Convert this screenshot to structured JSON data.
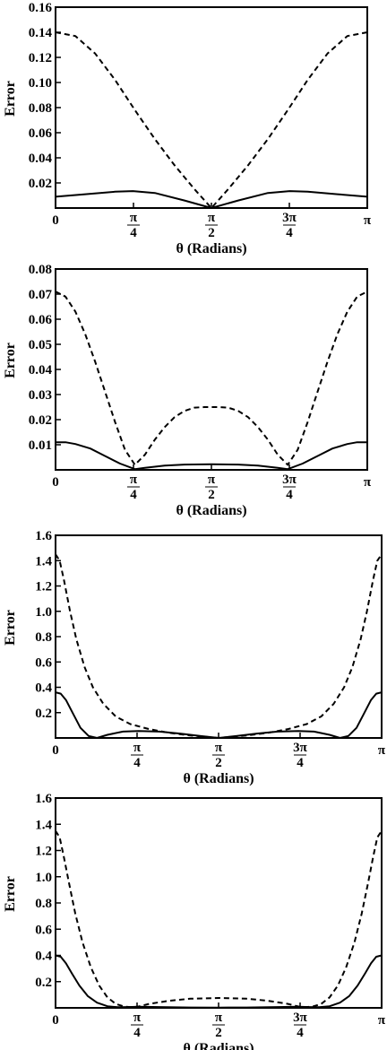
{
  "chart_data": [
    {
      "type": "line",
      "xlabel": "θ (Radians)",
      "ylabel": "Error",
      "xlim": [
        0,
        3.14159
      ],
      "ylim": [
        0,
        0.16
      ],
      "x_ticks": [
        {
          "value": 0,
          "label": "0"
        },
        {
          "value": 0.7854,
          "label": "π/4"
        },
        {
          "value": 1.5708,
          "label": "π/2"
        },
        {
          "value": 2.3562,
          "label": "3π/4"
        },
        {
          "value": 3.14159,
          "label": "π"
        }
      ],
      "y_ticks": [
        {
          "value": 0.02,
          "label": "0.02"
        },
        {
          "value": 0.04,
          "label": "0.04"
        },
        {
          "value": 0.06,
          "label": "0.06"
        },
        {
          "value": 0.08,
          "label": "0.08"
        },
        {
          "value": 0.1,
          "label": "0.10"
        },
        {
          "value": 0.12,
          "label": "0.12"
        },
        {
          "value": 0.14,
          "label": "0.14"
        },
        {
          "value": 0.16,
          "label": "0.16"
        }
      ],
      "series": [
        {
          "style": "dashed",
          "x": [
            0,
            0.2,
            0.4,
            0.6,
            0.8,
            1.0,
            1.2,
            1.4,
            1.5708,
            1.74,
            1.94,
            2.14,
            2.34,
            2.54,
            2.74,
            2.94,
            3.14159
          ],
          "values": [
            0.14,
            0.137,
            0.123,
            0.102,
            0.078,
            0.055,
            0.034,
            0.015,
            0.0,
            0.015,
            0.034,
            0.055,
            0.078,
            0.102,
            0.123,
            0.137,
            0.14
          ]
        },
        {
          "style": "solid",
          "x": [
            0,
            0.3,
            0.6,
            0.78,
            1.0,
            1.3,
            1.5708,
            1.84,
            2.14,
            2.36,
            2.54,
            2.84,
            3.14159
          ],
          "values": [
            0.009,
            0.011,
            0.013,
            0.0135,
            0.012,
            0.006,
            0.0,
            0.006,
            0.012,
            0.0135,
            0.013,
            0.011,
            0.009
          ]
        }
      ]
    },
    {
      "type": "line",
      "xlabel": "θ (Radians)",
      "ylabel": "Error",
      "xlim": [
        0,
        3.14159
      ],
      "ylim": [
        0,
        0.08
      ],
      "x_ticks": [
        {
          "value": 0,
          "label": "0"
        },
        {
          "value": 0.7854,
          "label": "π/4"
        },
        {
          "value": 1.5708,
          "label": "π/2"
        },
        {
          "value": 2.3562,
          "label": "3π/4"
        },
        {
          "value": 3.14159,
          "label": "π"
        }
      ],
      "y_ticks": [
        {
          "value": 0.01,
          "label": "0.01"
        },
        {
          "value": 0.02,
          "label": "0.02"
        },
        {
          "value": 0.03,
          "label": "0.03"
        },
        {
          "value": 0.04,
          "label": "0.04"
        },
        {
          "value": 0.05,
          "label": "0.05"
        },
        {
          "value": 0.06,
          "label": "0.06"
        },
        {
          "value": 0.07,
          "label": "0.07"
        },
        {
          "value": 0.08,
          "label": "0.08"
        }
      ],
      "series": [
        {
          "style": "dashed",
          "x": [
            0,
            0.1,
            0.2,
            0.3,
            0.4,
            0.5,
            0.6,
            0.7,
            0.8,
            0.9,
            1.0,
            1.1,
            1.2,
            1.3,
            1.4,
            1.5,
            1.5708,
            1.64,
            1.74,
            1.84,
            1.94,
            2.04,
            2.14,
            2.24,
            2.34,
            2.44,
            2.54,
            2.64,
            2.74,
            2.84,
            2.94,
            3.04,
            3.14159
          ],
          "values": [
            0.071,
            0.069,
            0.063,
            0.054,
            0.043,
            0.031,
            0.019,
            0.008,
            0.002,
            0.006,
            0.012,
            0.017,
            0.021,
            0.0235,
            0.0248,
            0.025,
            0.025,
            0.025,
            0.0248,
            0.0235,
            0.021,
            0.017,
            0.012,
            0.006,
            0.002,
            0.008,
            0.019,
            0.031,
            0.043,
            0.054,
            0.063,
            0.069,
            0.071
          ]
        },
        {
          "style": "solid",
          "x": [
            0,
            0.1,
            0.2,
            0.35,
            0.5,
            0.65,
            0.8,
            0.9,
            1.1,
            1.3,
            1.5708,
            1.84,
            2.04,
            2.24,
            2.34,
            2.49,
            2.64,
            2.79,
            2.94,
            3.04,
            3.14159
          ],
          "values": [
            0.011,
            0.011,
            0.0103,
            0.0085,
            0.0055,
            0.0025,
            0.0003,
            0.0008,
            0.0017,
            0.0021,
            0.0022,
            0.0021,
            0.0017,
            0.0008,
            0.0003,
            0.0025,
            0.0055,
            0.0085,
            0.0103,
            0.011,
            0.011
          ]
        }
      ]
    },
    {
      "type": "line",
      "xlabel": "θ (Radians)",
      "ylabel": "Error",
      "xlim": [
        0,
        3.14159
      ],
      "ylim": [
        0,
        1.6
      ],
      "x_ticks": [
        {
          "value": 0,
          "label": "0"
        },
        {
          "value": 0.7854,
          "label": "π/4"
        },
        {
          "value": 1.5708,
          "label": "π/2"
        },
        {
          "value": 2.3562,
          "label": "3π/4"
        },
        {
          "value": 3.14159,
          "label": "π"
        }
      ],
      "y_ticks": [
        {
          "value": 0.2,
          "label": "0.2"
        },
        {
          "value": 0.4,
          "label": "0.4"
        },
        {
          "value": 0.6,
          "label": "0.6"
        },
        {
          "value": 0.8,
          "label": "0.8"
        },
        {
          "value": 1.0,
          "label": "1.0"
        },
        {
          "value": 1.2,
          "label": "1.2"
        },
        {
          "value": 1.4,
          "label": "1.4"
        },
        {
          "value": 1.6,
          "label": "1.6"
        }
      ],
      "series": [
        {
          "style": "dashed",
          "x": [
            0,
            0.04,
            0.08,
            0.14,
            0.2,
            0.28,
            0.36,
            0.46,
            0.58,
            0.72,
            0.9,
            1.1,
            1.3,
            1.5708,
            1.84,
            2.04,
            2.24,
            2.42,
            2.56,
            2.68,
            2.78,
            2.86,
            2.94,
            3.0,
            3.06,
            3.1,
            3.14159
          ],
          "values": [
            1.45,
            1.4,
            1.25,
            1.0,
            0.78,
            0.56,
            0.4,
            0.27,
            0.17,
            0.11,
            0.07,
            0.04,
            0.02,
            0.0,
            0.02,
            0.04,
            0.07,
            0.11,
            0.17,
            0.27,
            0.4,
            0.56,
            0.78,
            1.0,
            1.25,
            1.4,
            1.45
          ]
        },
        {
          "style": "solid",
          "x": [
            0,
            0.05,
            0.1,
            0.17,
            0.24,
            0.32,
            0.4,
            0.5,
            0.65,
            0.8,
            1.0,
            1.2,
            1.4,
            1.5708,
            1.74,
            1.94,
            2.14,
            2.34,
            2.49,
            2.64,
            2.74,
            2.82,
            2.9,
            2.97,
            3.04,
            3.09,
            3.14159
          ],
          "values": [
            0.36,
            0.35,
            0.3,
            0.19,
            0.08,
            0.015,
            0.0,
            0.025,
            0.05,
            0.055,
            0.05,
            0.035,
            0.015,
            0.0,
            0.015,
            0.035,
            0.05,
            0.055,
            0.05,
            0.025,
            0.0,
            0.015,
            0.08,
            0.19,
            0.3,
            0.35,
            0.36
          ]
        }
      ]
    },
    {
      "type": "line",
      "xlabel": "θ (Radians)",
      "ylabel": "Error",
      "xlim": [
        0,
        3.14159
      ],
      "ylim": [
        0,
        1.6
      ],
      "x_ticks": [
        {
          "value": 0,
          "label": "0"
        },
        {
          "value": 0.7854,
          "label": "π/4"
        },
        {
          "value": 1.5708,
          "label": "π/2"
        },
        {
          "value": 2.3562,
          "label": "3π/4"
        },
        {
          "value": 3.14159,
          "label": "π"
        }
      ],
      "y_ticks": [
        {
          "value": 0.2,
          "label": "0.2"
        },
        {
          "value": 0.4,
          "label": "0.4"
        },
        {
          "value": 0.6,
          "label": "0.6"
        },
        {
          "value": 0.8,
          "label": "0.8"
        },
        {
          "value": 1.0,
          "label": "1.0"
        },
        {
          "value": 1.2,
          "label": "1.2"
        },
        {
          "value": 1.4,
          "label": "1.4"
        },
        {
          "value": 1.6,
          "label": "1.6"
        }
      ],
      "series": [
        {
          "style": "dashed",
          "x": [
            0,
            0.04,
            0.08,
            0.13,
            0.19,
            0.26,
            0.34,
            0.42,
            0.5,
            0.58,
            0.66,
            0.74,
            0.8,
            0.9,
            1.1,
            1.3,
            1.5708,
            1.84,
            2.04,
            2.24,
            2.34,
            2.4,
            2.48,
            2.56,
            2.64,
            2.72,
            2.8,
            2.88,
            2.95,
            3.01,
            3.06,
            3.1,
            3.14159
          ],
          "values": [
            1.35,
            1.3,
            1.15,
            0.95,
            0.72,
            0.5,
            0.31,
            0.17,
            0.08,
            0.03,
            0.01,
            0.005,
            0.01,
            0.03,
            0.055,
            0.07,
            0.075,
            0.07,
            0.055,
            0.03,
            0.01,
            0.005,
            0.01,
            0.03,
            0.08,
            0.17,
            0.31,
            0.5,
            0.72,
            0.95,
            1.15,
            1.3,
            1.35
          ]
        },
        {
          "style": "solid",
          "x": [
            0,
            0.05,
            0.1,
            0.16,
            0.23,
            0.31,
            0.4,
            0.5,
            0.6,
            0.7,
            0.8,
            1.0,
            1.3,
            1.5708,
            1.84,
            2.14,
            2.34,
            2.44,
            2.54,
            2.64,
            2.74,
            2.83,
            2.91,
            2.98,
            3.04,
            3.09,
            3.14159
          ],
          "values": [
            0.4,
            0.39,
            0.34,
            0.26,
            0.17,
            0.09,
            0.04,
            0.012,
            0.005,
            0.006,
            0.008,
            0.006,
            0.003,
            0.002,
            0.003,
            0.006,
            0.008,
            0.006,
            0.005,
            0.012,
            0.04,
            0.09,
            0.17,
            0.26,
            0.34,
            0.39,
            0.4
          ]
        }
      ]
    }
  ]
}
